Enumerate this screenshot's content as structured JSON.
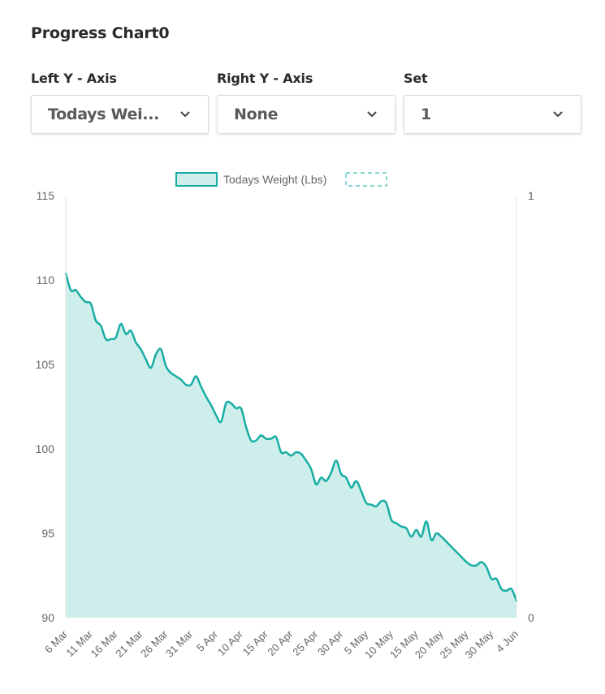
{
  "page": {
    "title": "Progress Chart0"
  },
  "controls": [
    {
      "label": "Left Y - Axis",
      "value": "Todays Wei...",
      "icon": "chevron-down-icon"
    },
    {
      "label": "Right Y - Axis",
      "value": "None",
      "icon": "chevron-down-icon"
    },
    {
      "label": "Set",
      "value": "1",
      "icon": "chevron-down-icon"
    }
  ],
  "chart_data": {
    "type": "area",
    "legend": {
      "position": "top-center",
      "entries": [
        "Todays Weight (Lbs)",
        ""
      ]
    },
    "colors": {
      "line": "#17ada4",
      "fill": "#cdeeeb",
      "axis": "#e6e6e6",
      "tick_text": "#666666"
    },
    "x_unit": "date",
    "y_left": {
      "min": 90,
      "max": 115,
      "ticks": [
        "90",
        "95",
        "100",
        "105",
        "110",
        "115"
      ]
    },
    "y_right": {
      "min": 0,
      "max": 1,
      "ticks": [
        "0",
        "1"
      ]
    },
    "x_range": [
      "6 Mar",
      "4 Jun"
    ],
    "x_ticks": [
      "6 Mar",
      "11 Mar",
      "16 Mar",
      "21 Mar",
      "26 Mar",
      "31 Mar",
      "5 Apr",
      "10 Apr",
      "15 Apr",
      "20 Apr",
      "25 Apr",
      "30 Apr",
      "5 May",
      "10 May",
      "15 May",
      "20 May",
      "25 May",
      "30 May",
      "4 Jun"
    ],
    "grid": false,
    "series": [
      {
        "name": "Todays Weight (Lbs)",
        "axis": "left",
        "dates": [
          "6 Mar",
          "7 Mar",
          "8 Mar",
          "9 Mar",
          "10 Mar",
          "11 Mar",
          "12 Mar",
          "13 Mar",
          "14 Mar",
          "15 Mar",
          "16 Mar",
          "17 Mar",
          "18 Mar",
          "19 Mar",
          "20 Mar",
          "21 Mar",
          "22 Mar",
          "23 Mar",
          "24 Mar",
          "25 Mar",
          "26 Mar",
          "27 Mar",
          "28 Mar",
          "29 Mar",
          "30 Mar",
          "31 Mar",
          "1 Apr",
          "2 Apr",
          "3 Apr",
          "4 Apr",
          "5 Apr",
          "6 Apr",
          "7 Apr",
          "8 Apr",
          "9 Apr",
          "10 Apr",
          "11 Apr",
          "12 Apr",
          "13 Apr",
          "14 Apr",
          "15 Apr",
          "16 Apr",
          "17 Apr",
          "18 Apr",
          "19 Apr",
          "20 Apr",
          "21 Apr",
          "22 Apr",
          "23 Apr",
          "24 Apr",
          "25 Apr",
          "26 Apr",
          "27 Apr",
          "28 Apr",
          "29 Apr",
          "30 Apr",
          "1 May",
          "2 May",
          "3 May",
          "4 May",
          "5 May",
          "6 May",
          "7 May",
          "8 May",
          "9 May",
          "10 May",
          "11 May",
          "12 May",
          "13 May",
          "14 May",
          "15 May",
          "16 May",
          "17 May",
          "18 May",
          "19 May",
          "20 May",
          "21 May",
          "22 May",
          "23 May",
          "24 May",
          "25 May",
          "26 May",
          "27 May",
          "28 May",
          "29 May",
          "30 May",
          "31 May",
          "1 Jun",
          "2 Jun",
          "3 Jun",
          "4 Jun"
        ],
        "values": [
          110.4,
          109.4,
          109.4,
          109.0,
          108.7,
          108.6,
          107.6,
          107.3,
          106.5,
          106.5,
          106.6,
          107.4,
          106.8,
          107.0,
          106.3,
          105.9,
          105.3,
          104.8,
          105.6,
          105.9,
          104.9,
          104.5,
          104.3,
          104.1,
          103.8,
          103.8,
          104.3,
          103.7,
          103.1,
          102.6,
          102.0,
          101.6,
          102.7,
          102.7,
          102.4,
          102.4,
          101.3,
          100.5,
          100.5,
          100.8,
          100.6,
          100.6,
          100.7,
          99.8,
          99.8,
          99.6,
          99.8,
          99.7,
          99.3,
          98.8,
          97.9,
          98.3,
          98.1,
          98.6,
          99.3,
          98.5,
          98.3,
          97.7,
          98.1,
          97.5,
          96.8,
          96.7,
          96.6,
          96.9,
          96.8,
          95.8,
          95.6,
          95.4,
          95.3,
          94.8,
          95.2,
          94.8,
          95.7,
          94.6,
          95.0,
          94.8,
          94.5,
          94.2,
          93.9,
          93.6,
          93.3,
          93.1,
          93.1,
          93.3,
          93.0,
          92.3,
          92.3,
          91.7,
          91.6,
          91.7,
          91.0
        ]
      }
    ]
  }
}
